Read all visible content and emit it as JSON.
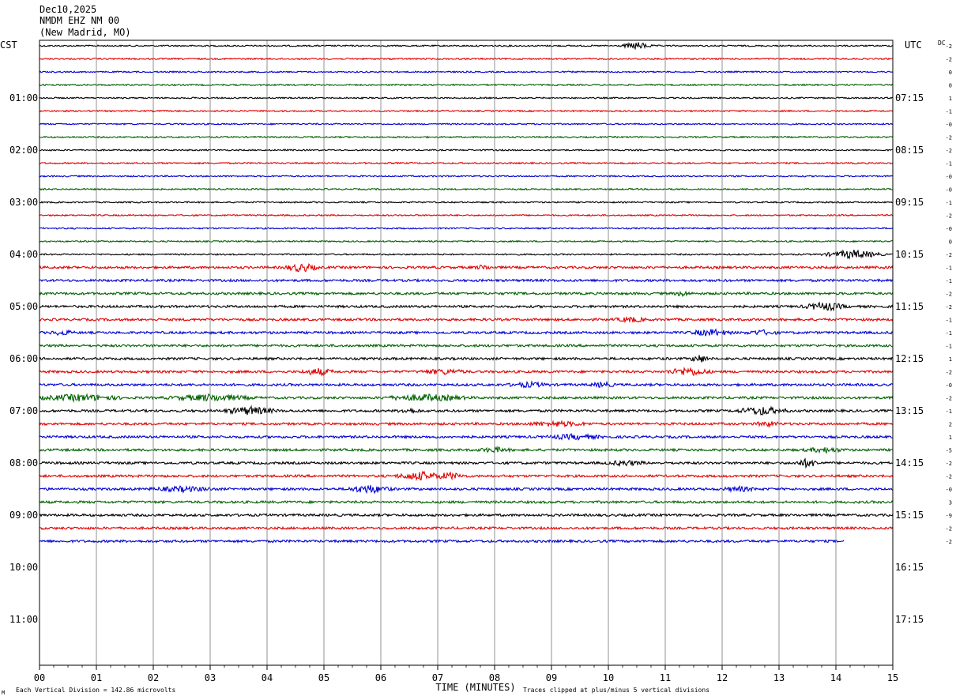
{
  "header": {
    "date": "Dec10,2025",
    "station": "NMDM EHZ NM 00",
    "location": "(New Madrid, MO)"
  },
  "labels": {
    "left_timezone": "CST",
    "right_timezone": "UTC",
    "dc_header": "DC",
    "footer_left": "Each Vertical Division =  142.86 microvolts",
    "footer_right": "Traces clipped at plus/minus 5 vertical divisions",
    "corner_mark": "M"
  },
  "chart_data": {
    "type": "line",
    "title": "",
    "xlabel": "TIME (MINUTES)",
    "ylabel": "",
    "x_ticks": [
      "00",
      "01",
      "02",
      "03",
      "04",
      "05",
      "06",
      "07",
      "08",
      "09",
      "10",
      "11",
      "12",
      "13",
      "14",
      "15"
    ],
    "xlim": [
      0,
      15
    ],
    "grid": "vertical lines at each minute",
    "left_hour_labels": [
      "01:00",
      "02:00",
      "03:00",
      "04:00",
      "05:00",
      "06:00",
      "07:00",
      "08:00",
      "09:00",
      "10:00",
      "11:00"
    ],
    "right_hour_labels": [
      "07:15",
      "08:15",
      "09:15",
      "10:15",
      "11:15",
      "12:15",
      "13:15",
      "14:15",
      "15:15",
      "16:15",
      "17:15"
    ],
    "trace_colors": [
      "#000000",
      "#e00000",
      "#0000d0",
      "#006000"
    ],
    "trace_minutes_per_line": 15,
    "last_trace_end_minute": 14.15,
    "dc_offsets": [
      "-2",
      "-2",
      "0",
      "0",
      "1",
      "-1",
      "-0",
      "-2",
      "-2",
      "-1",
      "-0",
      "-0",
      "-1",
      "-2",
      "-0",
      "0",
      "-2",
      "-1",
      "-1",
      "-2",
      "-2",
      "-1",
      "-1",
      "-1",
      "1",
      "-2",
      "-0",
      "-2",
      "-1",
      "2",
      "1",
      "-5",
      "-2",
      "-2",
      "-0",
      "3",
      "-9",
      "-2",
      "-2"
    ],
    "events": [
      {
        "trace": 0,
        "minute": 10.5,
        "amp": 4,
        "dur": 0.3
      },
      {
        "trace": 17,
        "minute": 4.6,
        "amp": 5,
        "dur": 0.4
      },
      {
        "trace": 17,
        "minute": 7.8,
        "amp": 3,
        "dur": 0.2
      },
      {
        "trace": 16,
        "minute": 14.3,
        "amp": 5,
        "dur": 0.6
      },
      {
        "trace": 19,
        "minute": 11.3,
        "amp": 3,
        "dur": 0.2
      },
      {
        "trace": 20,
        "minute": 13.8,
        "amp": 5,
        "dur": 0.5
      },
      {
        "trace": 21,
        "minute": 10.4,
        "amp": 3,
        "dur": 0.4
      },
      {
        "trace": 22,
        "minute": 11.8,
        "amp": 4,
        "dur": 0.5
      },
      {
        "trace": 22,
        "minute": 12.7,
        "amp": 3,
        "dur": 0.4
      },
      {
        "trace": 22,
        "minute": 0.4,
        "amp": 3,
        "dur": 0.3
      },
      {
        "trace": 24,
        "minute": 11.6,
        "amp": 5,
        "dur": 0.2
      },
      {
        "trace": 25,
        "minute": 4.9,
        "amp": 4,
        "dur": 0.4
      },
      {
        "trace": 25,
        "minute": 7.1,
        "amp": 3,
        "dur": 0.6
      },
      {
        "trace": 25,
        "minute": 11.4,
        "amp": 5,
        "dur": 0.5
      },
      {
        "trace": 26,
        "minute": 8.6,
        "amp": 3,
        "dur": 0.5
      },
      {
        "trace": 26,
        "minute": 9.9,
        "amp": 3,
        "dur": 0.3
      },
      {
        "trace": 27,
        "minute": 0.7,
        "amp": 4,
        "dur": 1.0
      },
      {
        "trace": 27,
        "minute": 3.0,
        "amp": 4,
        "dur": 1.0
      },
      {
        "trace": 27,
        "minute": 6.8,
        "amp": 4,
        "dur": 1.0
      },
      {
        "trace": 28,
        "minute": 3.7,
        "amp": 5,
        "dur": 0.6
      },
      {
        "trace": 28,
        "minute": 6.5,
        "amp": 3,
        "dur": 0.3
      },
      {
        "trace": 28,
        "minute": 12.7,
        "amp": 5,
        "dur": 0.6
      },
      {
        "trace": 29,
        "minute": 9.1,
        "amp": 3,
        "dur": 0.8
      },
      {
        "trace": 29,
        "minute": 12.8,
        "amp": 3,
        "dur": 0.3
      },
      {
        "trace": 30,
        "minute": 9.4,
        "amp": 3,
        "dur": 0.7
      },
      {
        "trace": 31,
        "minute": 13.8,
        "amp": 3,
        "dur": 0.5
      },
      {
        "trace": 31,
        "minute": 8.0,
        "amp": 3,
        "dur": 0.4
      },
      {
        "trace": 32,
        "minute": 10.3,
        "amp": 3,
        "dur": 0.5
      },
      {
        "trace": 32,
        "minute": 13.5,
        "amp": 5,
        "dur": 0.3
      },
      {
        "trace": 33,
        "minute": 6.7,
        "amp": 5,
        "dur": 0.6
      },
      {
        "trace": 33,
        "minute": 7.2,
        "amp": 4,
        "dur": 0.4
      },
      {
        "trace": 34,
        "minute": 5.8,
        "amp": 5,
        "dur": 0.5
      },
      {
        "trace": 34,
        "minute": 2.5,
        "amp": 3,
        "dur": 0.8
      },
      {
        "trace": 34,
        "minute": 12.3,
        "amp": 3,
        "dur": 0.4
      }
    ]
  }
}
